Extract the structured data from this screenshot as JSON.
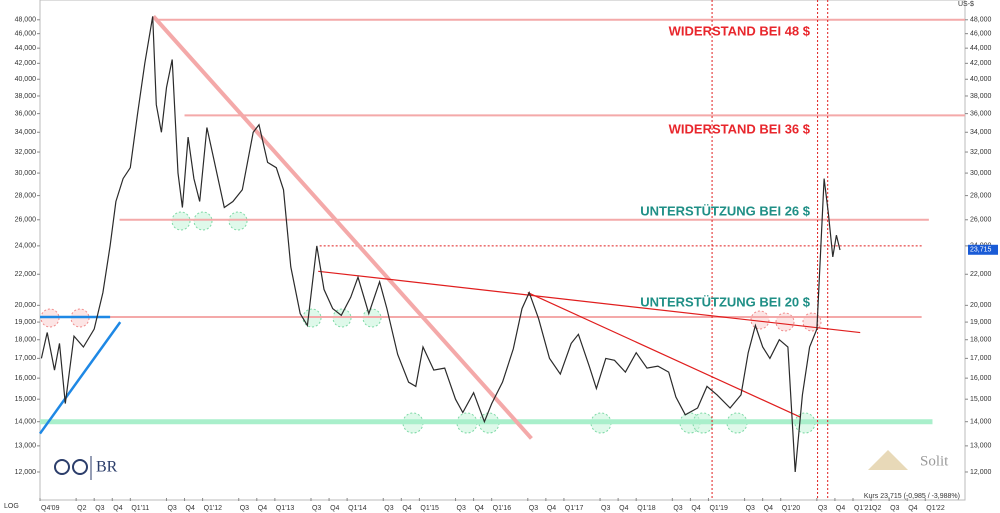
{
  "chart_data": {
    "type": "line",
    "log_scale": true,
    "y_unit": "US-$",
    "scale_label": "LOG",
    "footer": "Kurs 23,715 (-0,985 / -3,988%)",
    "last_price": {
      "value": 23.715,
      "label": "23,715"
    },
    "brand_left": "BR",
    "brand_right": "Solit",
    "xlim": [
      2009.75,
      2022.55
    ],
    "ylim": [
      11.08,
      51.0
    ],
    "xticks": [
      {
        "value": 2009.75,
        "label": "Q4'09"
      },
      {
        "value": 2010.25,
        "label": "Q2"
      },
      {
        "value": 2010.5,
        "label": "Q3"
      },
      {
        "value": 2010.75,
        "label": "Q4"
      },
      {
        "value": 2011.0,
        "label": "Q1'11"
      },
      {
        "value": 2011.5,
        "label": "Q3"
      },
      {
        "value": 2011.75,
        "label": "Q4"
      },
      {
        "value": 2012.0,
        "label": "Q1'12"
      },
      {
        "value": 2012.5,
        "label": "Q3"
      },
      {
        "value": 2012.75,
        "label": "Q4"
      },
      {
        "value": 2013.0,
        "label": "Q1'13"
      },
      {
        "value": 2013.5,
        "label": "Q3"
      },
      {
        "value": 2013.75,
        "label": "Q4"
      },
      {
        "value": 2014.0,
        "label": "Q1'14"
      },
      {
        "value": 2014.5,
        "label": "Q3"
      },
      {
        "value": 2014.75,
        "label": "Q4"
      },
      {
        "value": 2015.0,
        "label": "Q1'15"
      },
      {
        "value": 2015.5,
        "label": "Q3"
      },
      {
        "value": 2015.75,
        "label": "Q4"
      },
      {
        "value": 2016.0,
        "label": "Q1'16"
      },
      {
        "value": 2016.5,
        "label": "Q3"
      },
      {
        "value": 2016.75,
        "label": "Q4"
      },
      {
        "value": 2017.0,
        "label": "Q1'17"
      },
      {
        "value": 2017.5,
        "label": "Q3"
      },
      {
        "value": 2017.75,
        "label": "Q4"
      },
      {
        "value": 2018.0,
        "label": "Q1'18"
      },
      {
        "value": 2018.5,
        "label": "Q3"
      },
      {
        "value": 2018.75,
        "label": "Q4"
      },
      {
        "value": 2019.0,
        "label": "Q1'19"
      },
      {
        "value": 2019.5,
        "label": "Q3"
      },
      {
        "value": 2019.75,
        "label": "Q4"
      },
      {
        "value": 2020.0,
        "label": "Q1'20"
      },
      {
        "value": 2020.5,
        "label": "Q3"
      },
      {
        "value": 2020.75,
        "label": "Q4"
      },
      {
        "value": 2021.0,
        "label": "Q1'21"
      },
      {
        "value": 2021.25,
        "label": "Q2"
      },
      {
        "value": 2021.5,
        "label": "Q3"
      },
      {
        "value": 2021.75,
        "label": "Q4"
      },
      {
        "value": 2022.0,
        "label": "Q1'22"
      }
    ],
    "yticks": [
      {
        "value": 12,
        "label": "12,000"
      },
      {
        "value": 13,
        "label": "13,000"
      },
      {
        "value": 14,
        "label": "14,000"
      },
      {
        "value": 15,
        "label": "15,000"
      },
      {
        "value": 16,
        "label": "16,000"
      },
      {
        "value": 17,
        "label": "17,000"
      },
      {
        "value": 18,
        "label": "18,000"
      },
      {
        "value": 19,
        "label": "19,000"
      },
      {
        "value": 20,
        "label": "20,000"
      },
      {
        "value": 22,
        "label": "22,000"
      },
      {
        "value": 24,
        "label": "24,000"
      },
      {
        "value": 26,
        "label": "26,000"
      },
      {
        "value": 28,
        "label": "28,000"
      },
      {
        "value": 30,
        "label": "30,000"
      },
      {
        "value": 32,
        "label": "32,000"
      },
      {
        "value": 34,
        "label": "34,000"
      },
      {
        "value": 36,
        "label": "36,000"
      },
      {
        "value": 38,
        "label": "38,000"
      },
      {
        "value": 40,
        "label": "40,000"
      },
      {
        "value": 42,
        "label": "42,000"
      },
      {
        "value": 44,
        "label": "44,000"
      },
      {
        "value": 46,
        "label": "46,000"
      },
      {
        "value": 48,
        "label": "48,000"
      }
    ],
    "series": [
      {
        "color": "#2b2b2b",
        "x": [
          2009.77,
          2009.85,
          2009.95,
          2010.02,
          2010.1,
          2010.22,
          2010.35,
          2010.5,
          2010.62,
          2010.72,
          2010.8,
          2010.9,
          2011.0,
          2011.1,
          2011.2,
          2011.31,
          2011.36,
          2011.43,
          2011.5,
          2011.58,
          2011.66,
          2011.72,
          2011.8,
          2011.88,
          2011.96,
          2012.06,
          2012.15,
          2012.3,
          2012.42,
          2012.55,
          2012.7,
          2012.78,
          2012.9,
          2013.02,
          2013.12,
          2013.22,
          2013.35,
          2013.45,
          2013.58,
          2013.68,
          2013.8,
          2013.92,
          2014.05,
          2014.15,
          2014.3,
          2014.45,
          2014.55,
          2014.7,
          2014.85,
          2014.95,
          2015.05,
          2015.2,
          2015.35,
          2015.5,
          2015.6,
          2015.75,
          2015.9,
          2016.0,
          2016.15,
          2016.3,
          2016.42,
          2016.52,
          2016.65,
          2016.8,
          2016.95,
          2017.1,
          2017.2,
          2017.35,
          2017.45,
          2017.58,
          2017.7,
          2017.85,
          2018.0,
          2018.15,
          2018.3,
          2018.45,
          2018.55,
          2018.68,
          2018.85,
          2018.98,
          2019.12,
          2019.3,
          2019.45,
          2019.55,
          2019.65,
          2019.75,
          2019.85,
          2019.98,
          2020.1,
          2020.2,
          2020.3,
          2020.4,
          2020.5,
          2020.56,
          2020.6,
          2020.66,
          2020.72,
          2020.77,
          2020.82
        ],
        "values": [
          17.0,
          18.4,
          16.4,
          17.8,
          14.8,
          18.2,
          17.6,
          18.6,
          20.8,
          24,
          27.5,
          29.5,
          30.5,
          36,
          42,
          48.5,
          37,
          34,
          39,
          42.5,
          30,
          27,
          33.5,
          29.5,
          27.5,
          34.5,
          31.5,
          27,
          27.5,
          28.5,
          34,
          34.8,
          31,
          30.5,
          28.5,
          22.5,
          19.5,
          18.8,
          24,
          21,
          19.8,
          19.4,
          20.5,
          21.8,
          19.5,
          21.5,
          19.8,
          17.2,
          15.8,
          15.6,
          17.6,
          16.4,
          16.5,
          15.0,
          14.4,
          15.3,
          14.0,
          14.8,
          15.8,
          17.5,
          19.8,
          20.8,
          19.2,
          17.0,
          16.2,
          17.8,
          18.3,
          16.6,
          15.5,
          17.0,
          16.9,
          16.3,
          17.3,
          16.5,
          16.6,
          16.3,
          15.1,
          14.3,
          14.6,
          15.6,
          15.2,
          14.6,
          15.2,
          17.3,
          18.8,
          17.6,
          17.0,
          18.0,
          17.6,
          12.0,
          15.2,
          17.6,
          18.6,
          24.5,
          29.5,
          26.5,
          23.2,
          24.8,
          23.7
        ]
      }
    ],
    "lines": [
      {
        "x": [
          2011.35,
          2022.55
        ],
        "y": [
          48,
          48
        ],
        "color": "#f4a9a9",
        "width": 2
      },
      {
        "x": [
          2011.75,
          2022.55
        ],
        "y": [
          35.8,
          35.8
        ],
        "color": "#f4a9a9",
        "width": 2
      },
      {
        "x": [
          2010.85,
          2022.05
        ],
        "y": [
          26,
          26
        ],
        "color": "#f4a9a9",
        "width": 2
      },
      {
        "x": [
          2009.75,
          2021.95
        ],
        "y": [
          19.3,
          19.3
        ],
        "color": "#f4a9a9",
        "width": 2
      },
      {
        "x": [
          2009.75,
          2022.1
        ],
        "y": [
          14,
          14
        ],
        "color": "#a9efcb",
        "width": 5
      },
      {
        "x": [
          2013.62,
          2021.95
        ],
        "y": [
          24,
          24
        ],
        "color": "#e01e1e",
        "width": 1,
        "dashed": true
      },
      {
        "x": [
          2011.32,
          2016.55
        ],
        "y": [
          48.5,
          13.3
        ],
        "color": "#f4a9a9",
        "width": 4
      },
      {
        "x": [
          2013.6,
          2021.1
        ],
        "y": [
          22.2,
          18.4
        ],
        "color": "#e01e1e",
        "width": 1.2
      },
      {
        "x": [
          2016.5,
          2020.27
        ],
        "y": [
          20.8,
          14.2
        ],
        "color": "#e01e1e",
        "width": 1.2
      },
      {
        "x": [
          2009.75,
          2010.86
        ],
        "y": [
          13.5,
          19.0
        ],
        "color": "#1e88e5",
        "width": 2.5
      },
      {
        "x": [
          2009.75,
          2010.72
        ],
        "y": [
          19.3,
          19.3
        ],
        "color": "#1e88e5",
        "width": 2.5
      },
      {
        "x": [
          2019.05,
          2019.05
        ],
        "y": [
          11.08,
          51.0
        ],
        "color": "#e01e1e",
        "width": 1,
        "dashed": true
      },
      {
        "x": [
          2020.51,
          2020.51
        ],
        "y": [
          11.08,
          51.0
        ],
        "color": "#e01e1e",
        "width": 1,
        "dashed": true
      },
      {
        "x": [
          2020.65,
          2020.65
        ],
        "y": [
          11.08,
          51.0
        ],
        "color": "#e01e1e",
        "width": 1,
        "dashed": true
      }
    ],
    "annotations": [
      "WIDERSTAND BEI 48 $",
      "WIDERSTAND BEI 36 $",
      "UNTERSTÜTZUNG BEI 26 $",
      "UNTERSTÜTZUNG BEI 20 $"
    ]
  }
}
